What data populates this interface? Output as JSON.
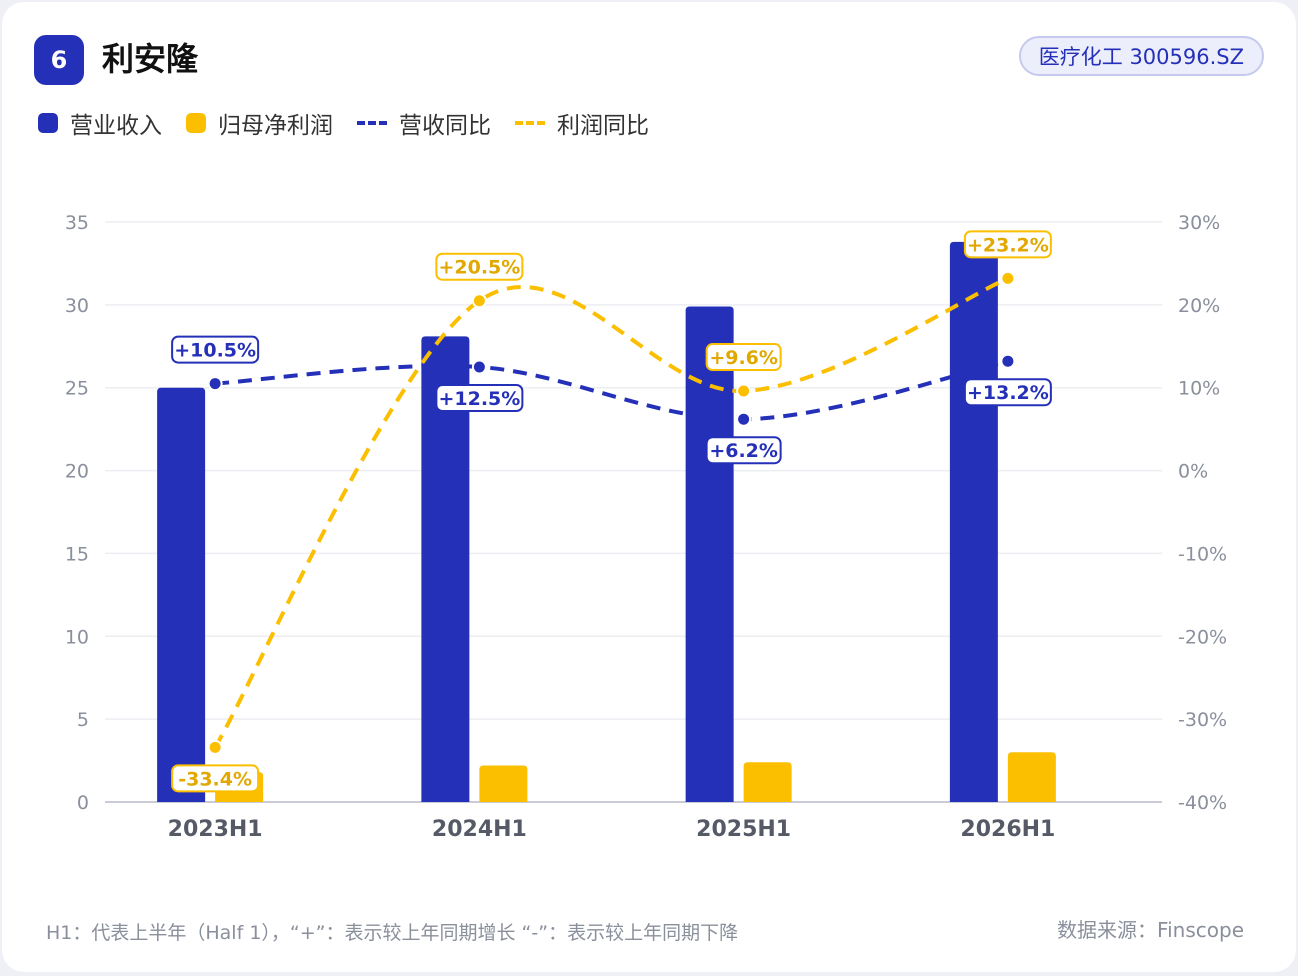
{
  "header": {
    "rank": "6",
    "title": "利安隆",
    "tag": "医疗化工 300596.SZ"
  },
  "legend": [
    {
      "label": "营业收入",
      "kind": "bar",
      "color": "#2530b8"
    },
    {
      "label": "归母净利润",
      "kind": "bar",
      "color": "#fbbf00"
    },
    {
      "label": "营收同比",
      "kind": "dash",
      "color": "#2530b8"
    },
    {
      "label": "利润同比",
      "kind": "dash",
      "color": "#fbbf00"
    }
  ],
  "chart_data": {
    "type": "bar",
    "categories": [
      "2023H1",
      "2024H1",
      "2025H1",
      "2026H1"
    ],
    "series": [
      {
        "name": "营业收入",
        "kind": "bar",
        "axis": "left",
        "color": "#2530b8",
        "values": [
          25.0,
          28.1,
          29.9,
          33.8
        ]
      },
      {
        "name": "归母净利润",
        "kind": "bar",
        "axis": "left",
        "color": "#fbbf00",
        "values": [
          1.8,
          2.2,
          2.4,
          3.0
        ]
      },
      {
        "name": "营收同比",
        "kind": "line",
        "axis": "right",
        "color": "#2530b8",
        "values": [
          10.5,
          12.5,
          6.2,
          13.2
        ],
        "labels": [
          "+10.5%",
          "+12.5%",
          "+6.2%",
          "+13.2%"
        ]
      },
      {
        "name": "利润同比",
        "kind": "line",
        "axis": "right",
        "color": "#fbbf00",
        "values": [
          -33.4,
          20.5,
          9.6,
          23.2
        ],
        "labels": [
          "-33.4%",
          "+20.5%",
          "+9.6%",
          "+23.2%"
        ]
      }
    ],
    "y_left": {
      "min": 0,
      "max": 35,
      "ticks": [
        "0",
        "5",
        "10",
        "15",
        "20",
        "25",
        "30",
        "35"
      ]
    },
    "y_right": {
      "min": -40,
      "max": 30,
      "ticks": [
        "-40%",
        "-30%",
        "-20%",
        "-10%",
        "0%",
        "10%",
        "20%",
        "30%"
      ]
    },
    "grid": true
  },
  "footer": {
    "note": "H1：代表上半年（Half 1），“+”：表示较上年同期增长        “-”：表示较上年同期下降",
    "source": "数据来源：Finscope"
  }
}
